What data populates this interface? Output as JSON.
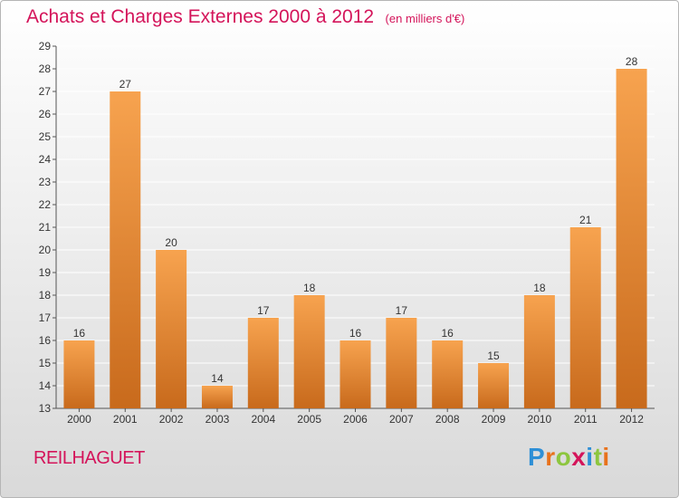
{
  "header": {
    "title": "Achats et Charges Externes 2000 à 2012",
    "unit": "(en milliers d'€)"
  },
  "commune": "REILHAGUET",
  "brand": {
    "name": "Proxiti",
    "letter_colors": [
      "#2e8fd6",
      "#e8721c",
      "#8dc63f",
      "#d4145a",
      "#2e8fd6",
      "#8dc63f",
      "#e8721c"
    ]
  },
  "colors": {
    "bar_light": "#f7a34f",
    "bar_dark": "#c86a1c",
    "grid": "#ffffff",
    "axis": "#555555",
    "text": "#333333",
    "title": "#d4145a"
  },
  "chart_data": {
    "type": "bar",
    "title": "Achats et Charges Externes 2000 à 2012",
    "xlabel": "",
    "ylabel": "",
    "categories": [
      "2000",
      "2001",
      "2002",
      "2003",
      "2004",
      "2005",
      "2006",
      "2007",
      "2008",
      "2009",
      "2010",
      "2011",
      "2012"
    ],
    "values": [
      16,
      27,
      20,
      14,
      17,
      18,
      16,
      17,
      16,
      15,
      18,
      21,
      28
    ],
    "ylim": [
      13,
      29
    ],
    "yticks": [
      13,
      14,
      15,
      16,
      17,
      18,
      19,
      20,
      21,
      22,
      23,
      24,
      25,
      26,
      27,
      28,
      29
    ],
    "grid": true,
    "legend": "none"
  }
}
